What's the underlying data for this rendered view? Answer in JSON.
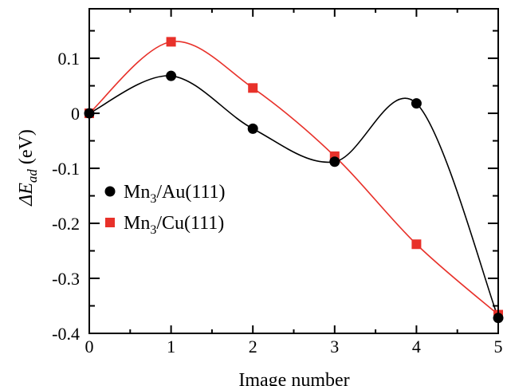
{
  "chart_data": {
    "type": "line",
    "x": [
      0,
      1,
      2,
      3,
      4,
      5
    ],
    "xlim": [
      0,
      5
    ],
    "ylim": [
      -0.4,
      0.19
    ],
    "xticks": [
      0,
      1,
      2,
      3,
      4,
      5
    ],
    "xtick_labels": [
      "0",
      "1",
      "2",
      "3",
      "4",
      "5"
    ],
    "yticks": [
      0.1,
      0,
      -0.1,
      -0.2,
      -0.3,
      -0.4
    ],
    "ytick_labels": [
      "0.1",
      "0",
      "-0.1",
      "-0.2",
      "-0.3",
      "-0.4"
    ],
    "xlabel": "Image number",
    "ylabel": {
      "delta": "ΔE",
      "sub": "ad",
      "unit": " (eV)"
    },
    "grid": false,
    "legend_position": "middle-left",
    "series": [
      {
        "name": {
          "base": "Mn",
          "sub": "3",
          "rest": "/Au(111)"
        },
        "marker": "circle",
        "color": "#000000",
        "values": [
          0.0,
          0.068,
          -0.028,
          -0.088,
          0.018,
          -0.372
        ]
      },
      {
        "name": {
          "base": "Mn",
          "sub": "3",
          "rest": "/Cu(111)"
        },
        "marker": "square",
        "color": "#e8312a",
        "values": [
          0.0,
          0.13,
          0.046,
          -0.078,
          -0.238,
          -0.366
        ]
      }
    ]
  }
}
